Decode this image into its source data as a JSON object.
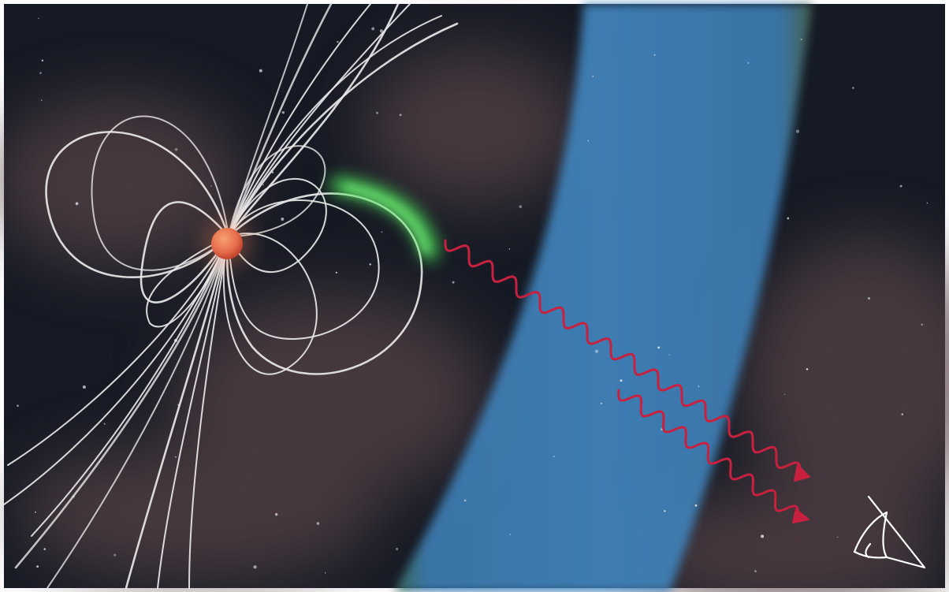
{
  "scene": {
    "subject": "star-magnetic-field-illustration",
    "colors": {
      "background": "#161a24",
      "frame": "#ffffff",
      "nebula": "#5a4548",
      "band": "#3d7cb1",
      "band_edge": "#5f8a5a",
      "field_lines": "#e8e8e8",
      "star_core": "#f0845a",
      "star_rim": "#c4402a",
      "aurora": "#4ee35a",
      "radio_waves": "#c8203f",
      "observer": "#ffffff"
    },
    "icons": [
      "eye-icon",
      "star-icon",
      "wave-arrow-icon"
    ]
  }
}
